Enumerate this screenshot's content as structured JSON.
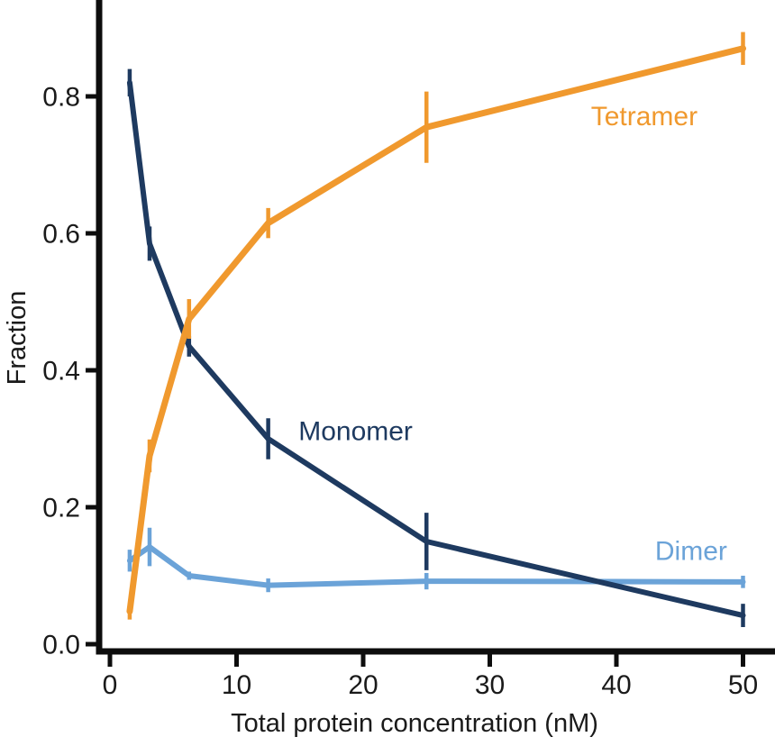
{
  "figure": {
    "background": "#ffffff",
    "axis_color": "#0d0d0d"
  },
  "chart_data": {
    "type": "line",
    "title": "",
    "xlabel": "Total protein concentration (nM)",
    "ylabel": "Fraction",
    "grid": false,
    "legend": "inline-labels",
    "xlim": [
      0,
      52.5
    ],
    "ylim": [
      0,
      0.94
    ],
    "xticks": [
      "0",
      "10",
      "20",
      "30",
      "40",
      "50"
    ],
    "xtick_values": [
      0,
      10,
      20,
      30,
      40,
      50
    ],
    "yticks": [
      "0.0",
      "0.2",
      "0.4",
      "0.6",
      "0.8"
    ],
    "ytick_values": [
      0,
      0.2,
      0.4,
      0.6,
      0.8
    ],
    "x": [
      1.56,
      3.13,
      6.25,
      12.5,
      25,
      50
    ],
    "series": [
      {
        "name": "Dimer",
        "color": "#6BA3D8",
        "values": [
          0.122,
          0.142,
          0.1,
          0.086,
          0.092,
          0.091
        ],
        "errors": [
          0.016,
          0.028,
          0.006,
          0.01,
          0.012,
          0.009
        ],
        "label_at": {
          "x": 45.9,
          "y": 0.137
        }
      },
      {
        "name": "Monomer",
        "color": "#1E3A60",
        "values": [
          0.82,
          0.585,
          0.435,
          0.3,
          0.15,
          0.042
        ],
        "errors": [
          0.02,
          0.025,
          0.015,
          0.03,
          0.042,
          0.017
        ],
        "label_at": {
          "x": 19.4,
          "y": 0.312
        }
      },
      {
        "name": "Tetramer",
        "color": "#F0992E",
        "values": [
          0.048,
          0.275,
          0.475,
          0.615,
          0.755,
          0.87
        ],
        "errors": [
          0.012,
          0.024,
          0.029,
          0.022,
          0.052,
          0.024
        ],
        "label_at": {
          "x": 42.2,
          "y": 0.772
        }
      }
    ]
  }
}
